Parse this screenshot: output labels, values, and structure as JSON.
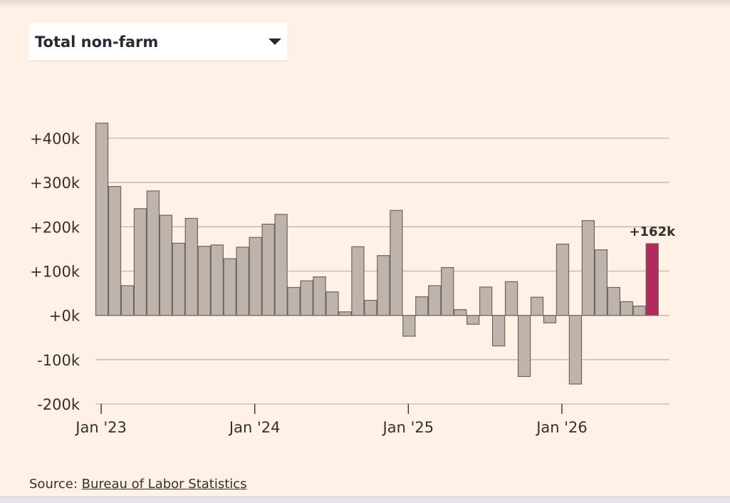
{
  "selector": {
    "label": "Total non-farm"
  },
  "source": {
    "prefix": "Source: ",
    "link_text": "Bureau of Labor Statistics"
  },
  "colors": {
    "bar": "#bfb4ab",
    "bar_stroke": "#6b6460",
    "highlight": "#b12a5b",
    "grid": "#c2b6ac",
    "background": "#fff1e5"
  },
  "chart_data": {
    "type": "bar",
    "x_start": "2023-01",
    "ylim": [
      -200,
      400
    ],
    "y_ticks": [
      400,
      300,
      200,
      100,
      0,
      -100,
      -200
    ],
    "y_tick_labels": [
      "+400k",
      "+300k",
      "+200k",
      "+100k",
      "+0k",
      "-100k",
      "-200k"
    ],
    "x_tick_labels": [
      "Jan '23",
      "Jan '24",
      "Jan '25",
      "Jan '26"
    ],
    "x_tick_index": [
      0,
      12,
      24,
      36
    ],
    "values": [
      434,
      291,
      67,
      241,
      281,
      226,
      163,
      219,
      156,
      159,
      128,
      154,
      176,
      206,
      228,
      63,
      78,
      87,
      53,
      8,
      155,
      34,
      135,
      237,
      -47,
      42,
      67,
      108,
      13,
      -20,
      64,
      -69,
      76,
      -138,
      41,
      -17,
      161,
      -155,
      214,
      148,
      63,
      31,
      21,
      162
    ],
    "highlight_index": 43,
    "highlight_label": "+162k",
    "grid": true
  }
}
